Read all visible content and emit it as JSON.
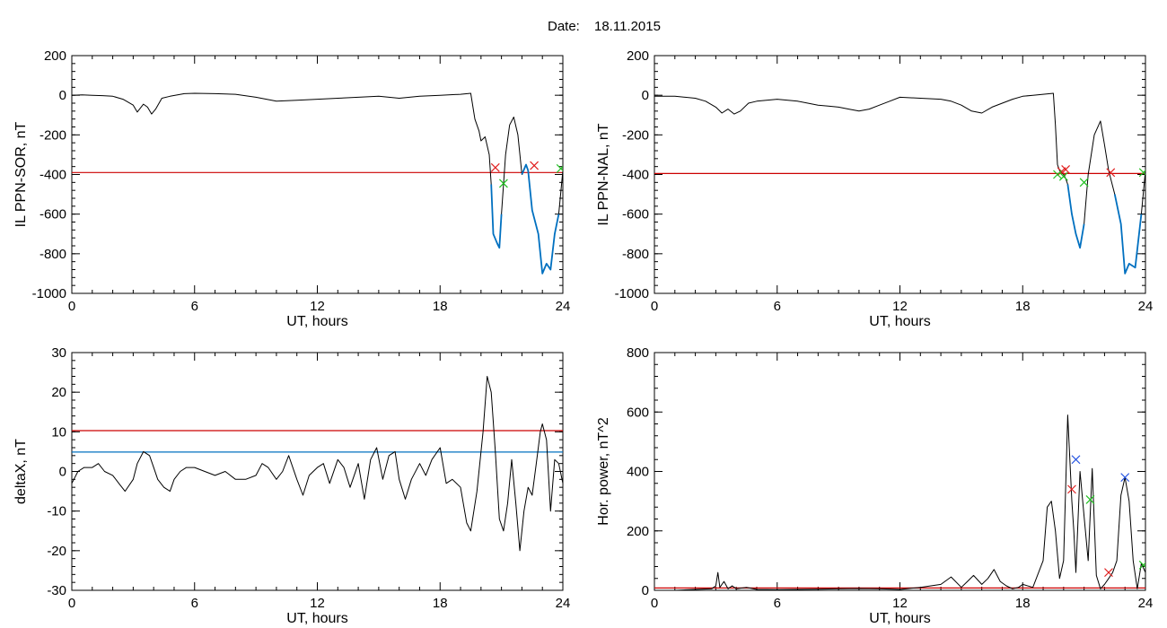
{
  "header": {
    "label": "Date:",
    "value": "18.11.2015"
  },
  "colors": {
    "trace": "#000000",
    "threshold": "#cc0000",
    "blue_line": "#0070c0",
    "marker_red": "#e02020",
    "marker_green": "#20c020",
    "marker_blue": "#2050e0"
  },
  "chart_data": [
    {
      "type": "line",
      "xlabel": "UT, hours",
      "ylabel": "IL PPN-SOR, nT",
      "xlim": [
        0,
        24
      ],
      "ylim": [
        -1000,
        200
      ],
      "xticks": [
        "0",
        "6",
        "12",
        "18",
        "24"
      ],
      "yticks": [
        "200",
        "0",
        "-200",
        "-400",
        "-600",
        "-800",
        "-1000"
      ],
      "series": [
        {
          "x": [
            0,
            0.5,
            1,
            1.5,
            2,
            2.5,
            3,
            3.2,
            3.5,
            3.7,
            3.9,
            4.1,
            4.4,
            4.8,
            5.5,
            6,
            7,
            8,
            9,
            10,
            11,
            12,
            13,
            14,
            15,
            16,
            17,
            18,
            19,
            19.5,
            19.7,
            19.9,
            20,
            20.2,
            20.4,
            20.5,
            20.6,
            20.8,
            20.9,
            21.0,
            21.2,
            21.4,
            21.6,
            21.8,
            22.0,
            22.2,
            22.3,
            22.5,
            22.6,
            22.8,
            23.0,
            23.2,
            23.4,
            23.6,
            23.8,
            24
          ],
          "y": [
            0,
            2,
            0,
            -2,
            -5,
            -20,
            -50,
            -85,
            -45,
            -60,
            -95,
            -70,
            -15,
            -5,
            8,
            10,
            8,
            5,
            -10,
            -30,
            -25,
            -20,
            -15,
            -10,
            -5,
            -15,
            -5,
            0,
            5,
            10,
            -120,
            -180,
            -230,
            -210,
            -300,
            -450,
            -700,
            -750,
            -770,
            -600,
            -300,
            -150,
            -110,
            -200,
            -400,
            -350,
            -380,
            -580,
            -620,
            -700,
            -900,
            -850,
            -880,
            -700,
            -600,
            -380
          ]
        },
        {
          "x": [
            20.5,
            20.6,
            20.8,
            20.9,
            21.0
          ],
          "y": [
            -450,
            -700,
            -750,
            -770,
            -600
          ]
        },
        {
          "x": [
            22.0,
            22.2,
            22.3,
            22.5,
            22.6,
            22.8,
            23.0,
            23.2,
            23.4,
            23.6,
            23.8
          ],
          "y": [
            -400,
            -350,
            -380,
            -580,
            -620,
            -700,
            -900,
            -850,
            -880,
            -700,
            -600
          ]
        }
      ],
      "threshold": -390,
      "markers_red": [
        {
          "x": 20.7,
          "y": -365
        },
        {
          "x": 22.6,
          "y": -355
        }
      ],
      "markers_green": [
        {
          "x": 21.1,
          "y": -445
        },
        {
          "x": 23.9,
          "y": -370
        }
      ]
    },
    {
      "type": "line",
      "xlabel": "UT, hours",
      "ylabel": "IL PPN-NAL, nT",
      "xlim": [
        0,
        24
      ],
      "ylim": [
        -1000,
        200
      ],
      "xticks": [
        "0",
        "6",
        "12",
        "18",
        "24"
      ],
      "yticks": [
        "200",
        "0",
        "-200",
        "-400",
        "-600",
        "-800",
        "-1000"
      ],
      "series": [
        {
          "x": [
            0,
            1,
            2,
            2.5,
            3,
            3.3,
            3.6,
            3.9,
            4.2,
            4.6,
            5,
            6,
            7,
            7.5,
            8,
            8.5,
            9,
            9.5,
            10,
            10.5,
            11,
            11.5,
            12,
            13,
            14,
            14.5,
            15,
            15.5,
            16,
            16.5,
            17,
            17.5,
            18,
            18.5,
            19,
            19.5,
            19.6,
            19.7,
            19.8,
            20,
            20.1,
            20.2,
            20.4,
            20.6,
            20.8,
            21.0,
            21.2,
            21.5,
            21.8,
            22.0,
            22.2,
            22.5,
            22.8,
            23.0,
            23.2,
            23.5,
            23.8,
            24
          ],
          "y": [
            -5,
            -5,
            -15,
            -30,
            -60,
            -90,
            -70,
            -95,
            -80,
            -40,
            -30,
            -20,
            -30,
            -40,
            -50,
            -55,
            -60,
            -70,
            -80,
            -70,
            -50,
            -30,
            -10,
            -15,
            -20,
            -30,
            -50,
            -80,
            -90,
            -60,
            -40,
            -20,
            -5,
            0,
            5,
            10,
            -150,
            -350,
            -380,
            -400,
            -420,
            -450,
            -600,
            -700,
            -770,
            -650,
            -400,
            -200,
            -130,
            -250,
            -380,
            -500,
            -650,
            -900,
            -850,
            -870,
            -600,
            -380
          ]
        },
        {
          "x": [
            20.2,
            20.4,
            20.6,
            20.8,
            21.0
          ],
          "y": [
            -450,
            -600,
            -700,
            -770,
            -650
          ]
        },
        {
          "x": [
            22.5,
            22.8,
            23.0,
            23.2,
            23.5,
            23.8
          ],
          "y": [
            -500,
            -650,
            -900,
            -850,
            -870,
            -600
          ]
        }
      ],
      "threshold": -395,
      "markers_red": [
        {
          "x": 19.9,
          "y": -385
        },
        {
          "x": 20.1,
          "y": -375
        },
        {
          "x": 22.3,
          "y": -390
        }
      ],
      "markers_green": [
        {
          "x": 19.7,
          "y": -400
        },
        {
          "x": 20.0,
          "y": -410
        },
        {
          "x": 21.0,
          "y": -440
        },
        {
          "x": 23.9,
          "y": -390
        }
      ]
    },
    {
      "type": "line",
      "xlabel": "UT, hours",
      "ylabel": "deltaX, nT",
      "xlim": [
        0,
        24
      ],
      "ylim": [
        -30,
        30
      ],
      "xticks": [
        "0",
        "6",
        "12",
        "18",
        "24"
      ],
      "yticks": [
        "30",
        "20",
        "10",
        "0",
        "-10",
        "-20",
        "-30"
      ],
      "series": [
        {
          "x": [
            0,
            0.3,
            0.6,
            1,
            1.3,
            1.6,
            2,
            2.3,
            2.6,
            3,
            3.2,
            3.5,
            3.8,
            4.0,
            4.2,
            4.5,
            4.8,
            5.0,
            5.3,
            5.6,
            6,
            6.5,
            7,
            7.5,
            8,
            8.5,
            9,
            9.3,
            9.6,
            10,
            10.3,
            10.6,
            11,
            11.3,
            11.6,
            12,
            12.3,
            12.6,
            13,
            13.3,
            13.6,
            14,
            14.3,
            14.6,
            14.9,
            15.2,
            15.5,
            15.8,
            16,
            16.3,
            16.6,
            17,
            17.3,
            17.6,
            18,
            18.3,
            18.6,
            19,
            19.3,
            19.5,
            19.8,
            20.1,
            20.3,
            20.5,
            20.7,
            20.9,
            21.1,
            21.3,
            21.5,
            21.7,
            21.9,
            22.1,
            22.3,
            22.5,
            22.7,
            22.9,
            23.0,
            23.2,
            23.4,
            23.6,
            23.8,
            24
          ],
          "y": [
            -3,
            0,
            1,
            1,
            2,
            0,
            -1,
            -3,
            -5,
            -2,
            2,
            5,
            4,
            1,
            -2,
            -4,
            -5,
            -2,
            0,
            1,
            1,
            0,
            -1,
            0,
            -2,
            -2,
            -1,
            2,
            1,
            -2,
            0,
            4,
            -2,
            -6,
            -1,
            1,
            2,
            -3,
            3,
            1,
            -4,
            2,
            -7,
            3,
            6,
            -2,
            4,
            5,
            -2,
            -7,
            -2,
            2,
            -1,
            3,
            6,
            -3,
            -2,
            -4,
            -13,
            -15,
            -5,
            10,
            24,
            20,
            5,
            -12,
            -15,
            -8,
            3,
            -8,
            -20,
            -10,
            -4,
            -6,
            2,
            10,
            12,
            8,
            -10,
            3,
            2,
            -3
          ]
        }
      ],
      "threshold_red": 10.3,
      "threshold_blue": 4.9
    },
    {
      "type": "line",
      "xlabel": "UT, hours",
      "ylabel": "Hor. power, nT^2",
      "xlim": [
        0,
        24
      ],
      "ylim": [
        0,
        800
      ],
      "xticks": [
        "0",
        "6",
        "12",
        "18",
        "24"
      ],
      "yticks": [
        "800",
        "600",
        "400",
        "200",
        "0"
      ],
      "series": [
        {
          "x": [
            0,
            1,
            2,
            2.8,
            3.0,
            3.1,
            3.2,
            3.4,
            3.6,
            3.8,
            4,
            4.5,
            5,
            6,
            7,
            8,
            9,
            10,
            11,
            12,
            13,
            14,
            14.5,
            15,
            15.3,
            15.6,
            16,
            16.3,
            16.6,
            16.9,
            17.2,
            17.5,
            17.8,
            18,
            18.5,
            19,
            19.2,
            19.4,
            19.6,
            19.8,
            20,
            20.2,
            20.4,
            20.5,
            20.6,
            20.8,
            21.0,
            21.2,
            21.4,
            21.6,
            21.8,
            22.0,
            22.2,
            22.4,
            22.6,
            22.8,
            23.0,
            23.2,
            23.4,
            23.6,
            23.8,
            24
          ],
          "y": [
            0,
            0,
            3,
            5,
            15,
            60,
            10,
            30,
            5,
            15,
            5,
            10,
            3,
            2,
            3,
            4,
            5,
            6,
            5,
            3,
            10,
            20,
            45,
            10,
            30,
            50,
            20,
            40,
            70,
            30,
            15,
            5,
            10,
            20,
            10,
            100,
            280,
            300,
            200,
            40,
            100,
            590,
            300,
            200,
            60,
            400,
            250,
            100,
            410,
            50,
            5,
            20,
            40,
            60,
            100,
            320,
            380,
            300,
            100,
            5,
            90,
            60
          ]
        }
      ],
      "threshold": 8,
      "markers_red": [
        {
          "x": 20.4,
          "y": 340
        },
        {
          "x": 22.2,
          "y": 60
        }
      ],
      "markers_blue": [
        {
          "x": 20.6,
          "y": 440
        },
        {
          "x": 23.0,
          "y": 380
        }
      ],
      "markers_green": [
        {
          "x": 21.3,
          "y": 305
        },
        {
          "x": 23.9,
          "y": 85
        }
      ]
    }
  ]
}
